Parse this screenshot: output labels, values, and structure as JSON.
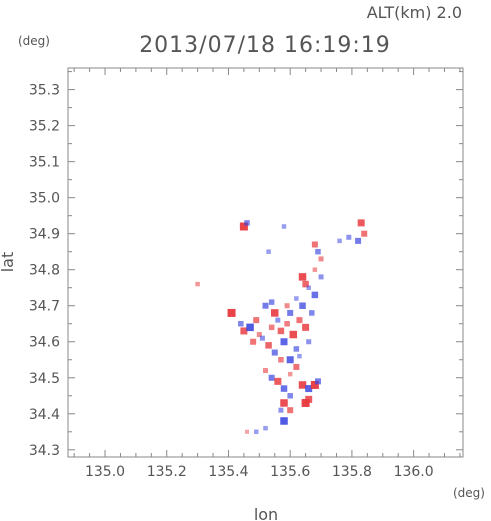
{
  "header": {
    "altitude": "ALT(km) 2.0",
    "datetime": "2013/07/18 16:19:19",
    "y_unit": "(deg)",
    "x_unit": "(deg)"
  },
  "colors": {
    "frame": "#888888",
    "text": "#555555",
    "positive": "#e8383d",
    "negative": "#3b46e0"
  },
  "chart_data": {
    "type": "heatmap",
    "title": "2013/07/18 16:19:19",
    "subtitle": "ALT(km) 2.0",
    "xlabel": "lon",
    "ylabel": "lat",
    "xlim": [
      134.88,
      136.16
    ],
    "ylim": [
      34.28,
      35.36
    ],
    "x_ticks": [
      135.0,
      135.2,
      135.4,
      135.6,
      135.8,
      136.0
    ],
    "x_tick_labels": [
      "135.0",
      "135.2",
      "135.4",
      "135.6",
      "135.8",
      "136.0"
    ],
    "y_ticks": [
      34.3,
      34.4,
      34.5,
      34.6,
      34.7,
      34.8,
      34.9,
      35.0,
      35.1,
      35.2,
      35.3
    ],
    "y_tick_labels": [
      "34.3",
      "34.4",
      "34.5",
      "34.6",
      "34.7",
      "34.8",
      "34.9",
      "35.0",
      "35.1",
      "35.2",
      "35.3"
    ],
    "grid": false,
    "legend": "none",
    "patches": [
      {
        "lon": 135.45,
        "lat": 34.92,
        "v": 1
      },
      {
        "lon": 135.46,
        "lat": 34.93,
        "v": -0.5
      },
      {
        "lon": 135.53,
        "lat": 34.85,
        "v": -0.3
      },
      {
        "lon": 135.58,
        "lat": 34.92,
        "v": -0.3
      },
      {
        "lon": 135.83,
        "lat": 34.93,
        "v": 0.8
      },
      {
        "lon": 135.84,
        "lat": 34.9,
        "v": 0.6
      },
      {
        "lon": 135.82,
        "lat": 34.88,
        "v": -0.6
      },
      {
        "lon": 135.79,
        "lat": 34.89,
        "v": -0.4
      },
      {
        "lon": 135.76,
        "lat": 34.88,
        "v": -0.3
      },
      {
        "lon": 135.68,
        "lat": 34.87,
        "v": 0.6
      },
      {
        "lon": 135.69,
        "lat": 34.85,
        "v": -0.5
      },
      {
        "lon": 135.7,
        "lat": 34.83,
        "v": 0.4
      },
      {
        "lon": 135.68,
        "lat": 34.8,
        "v": 0.3
      },
      {
        "lon": 135.64,
        "lat": 34.78,
        "v": 0.9
      },
      {
        "lon": 135.65,
        "lat": 34.76,
        "v": 0.7
      },
      {
        "lon": 135.7,
        "lat": 34.78,
        "v": -0.4
      },
      {
        "lon": 135.68,
        "lat": 34.73,
        "v": -0.7
      },
      {
        "lon": 135.66,
        "lat": 34.75,
        "v": -0.3
      },
      {
        "lon": 135.3,
        "lat": 34.76,
        "v": 0.3
      },
      {
        "lon": 135.41,
        "lat": 34.68,
        "v": 1
      },
      {
        "lon": 135.44,
        "lat": 34.65,
        "v": -0.5
      },
      {
        "lon": 135.45,
        "lat": 34.63,
        "v": 0.8
      },
      {
        "lon": 135.47,
        "lat": 34.64,
        "v": -0.9
      },
      {
        "lon": 135.49,
        "lat": 34.66,
        "v": 0.6
      },
      {
        "lon": 135.5,
        "lat": 34.62,
        "v": 0.4
      },
      {
        "lon": 135.52,
        "lat": 34.7,
        "v": -0.6
      },
      {
        "lon": 135.54,
        "lat": 34.71,
        "v": -0.5
      },
      {
        "lon": 135.55,
        "lat": 34.68,
        "v": 0.9
      },
      {
        "lon": 135.56,
        "lat": 34.66,
        "v": -0.4
      },
      {
        "lon": 135.57,
        "lat": 34.63,
        "v": 0.7
      },
      {
        "lon": 135.58,
        "lat": 34.6,
        "v": -0.8
      },
      {
        "lon": 135.59,
        "lat": 34.65,
        "v": 0.5
      },
      {
        "lon": 135.6,
        "lat": 34.68,
        "v": -0.6
      },
      {
        "lon": 135.61,
        "lat": 34.62,
        "v": 0.9
      },
      {
        "lon": 135.62,
        "lat": 34.58,
        "v": -0.5
      },
      {
        "lon": 135.63,
        "lat": 34.66,
        "v": 0.6
      },
      {
        "lon": 135.64,
        "lat": 34.7,
        "v": -0.7
      },
      {
        "lon": 135.65,
        "lat": 34.64,
        "v": 0.8
      },
      {
        "lon": 135.66,
        "lat": 34.6,
        "v": -0.4
      },
      {
        "lon": 135.67,
        "lat": 34.68,
        "v": -0.5
      },
      {
        "lon": 135.53,
        "lat": 34.59,
        "v": 0.7
      },
      {
        "lon": 135.55,
        "lat": 34.57,
        "v": -0.6
      },
      {
        "lon": 135.57,
        "lat": 34.55,
        "v": 0.5
      },
      {
        "lon": 135.6,
        "lat": 34.55,
        "v": -0.8
      },
      {
        "lon": 135.62,
        "lat": 34.53,
        "v": 0.6
      },
      {
        "lon": 135.63,
        "lat": 34.56,
        "v": -0.3
      },
      {
        "lon": 135.52,
        "lat": 34.52,
        "v": 0.4
      },
      {
        "lon": 135.54,
        "lat": 34.5,
        "v": -0.6
      },
      {
        "lon": 135.56,
        "lat": 34.49,
        "v": 0.8
      },
      {
        "lon": 135.58,
        "lat": 34.47,
        "v": -0.7
      },
      {
        "lon": 135.6,
        "lat": 34.51,
        "v": 0.3
      },
      {
        "lon": 135.64,
        "lat": 34.48,
        "v": 0.9
      },
      {
        "lon": 135.66,
        "lat": 34.47,
        "v": -0.8
      },
      {
        "lon": 135.68,
        "lat": 34.48,
        "v": 1
      },
      {
        "lon": 135.69,
        "lat": 34.49,
        "v": -0.6
      },
      {
        "lon": 135.65,
        "lat": 34.43,
        "v": 1
      },
      {
        "lon": 135.66,
        "lat": 34.44,
        "v": 0.8
      },
      {
        "lon": 135.6,
        "lat": 34.45,
        "v": -0.5
      },
      {
        "lon": 135.58,
        "lat": 34.43,
        "v": 0.9
      },
      {
        "lon": 135.57,
        "lat": 34.41,
        "v": -0.4
      },
      {
        "lon": 135.6,
        "lat": 34.41,
        "v": 0.6
      },
      {
        "lon": 135.58,
        "lat": 34.38,
        "v": -0.9
      },
      {
        "lon": 135.52,
        "lat": 34.36,
        "v": -0.3
      },
      {
        "lon": 135.49,
        "lat": 34.35,
        "v": -0.3
      },
      {
        "lon": 135.46,
        "lat": 34.35,
        "v": 0.2
      },
      {
        "lon": 135.51,
        "lat": 34.61,
        "v": -0.4
      },
      {
        "lon": 135.54,
        "lat": 34.64,
        "v": 0.5
      },
      {
        "lon": 135.48,
        "lat": 34.6,
        "v": 0.6
      },
      {
        "lon": 135.59,
        "lat": 34.7,
        "v": 0.4
      },
      {
        "lon": 135.62,
        "lat": 34.72,
        "v": -0.3
      }
    ]
  }
}
